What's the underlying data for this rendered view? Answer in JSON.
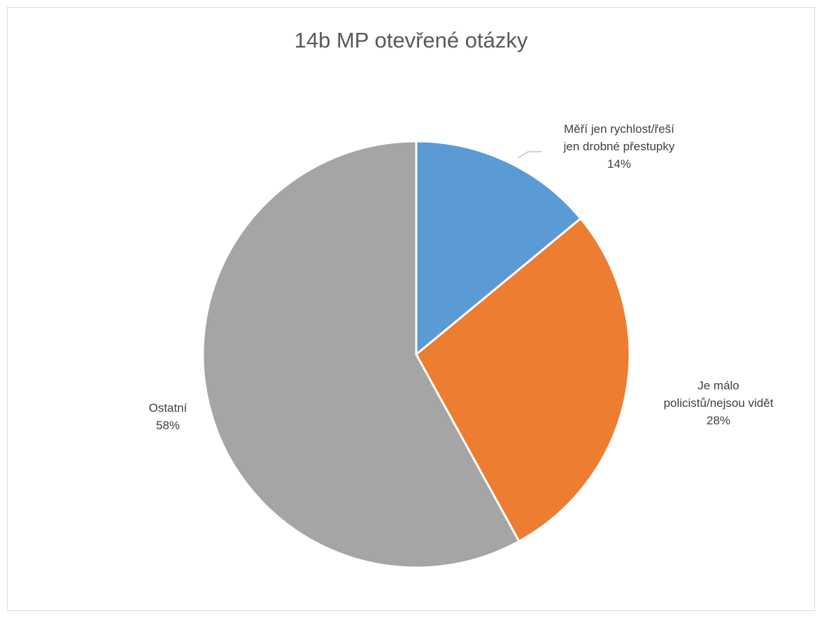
{
  "chart_data": {
    "type": "pie",
    "title": "14b MP otevřené otázky",
    "slices": [
      {
        "label_lines": [
          "Měří jen rychlost/řeší",
          "jen drobné přestupky"
        ],
        "percent_label": "14%",
        "value": 14,
        "color": "#5B9BD5"
      },
      {
        "label_lines": [
          "Je málo",
          "policistů/nejsou vidět"
        ],
        "percent_label": "28%",
        "value": 28,
        "color": "#ED7D31"
      },
      {
        "label_lines": [
          "Ostatní"
        ],
        "percent_label": "58%",
        "value": 58,
        "color": "#A5A5A5"
      }
    ],
    "start_angle_deg": 0,
    "direction": "clockwise",
    "legend": "none"
  }
}
